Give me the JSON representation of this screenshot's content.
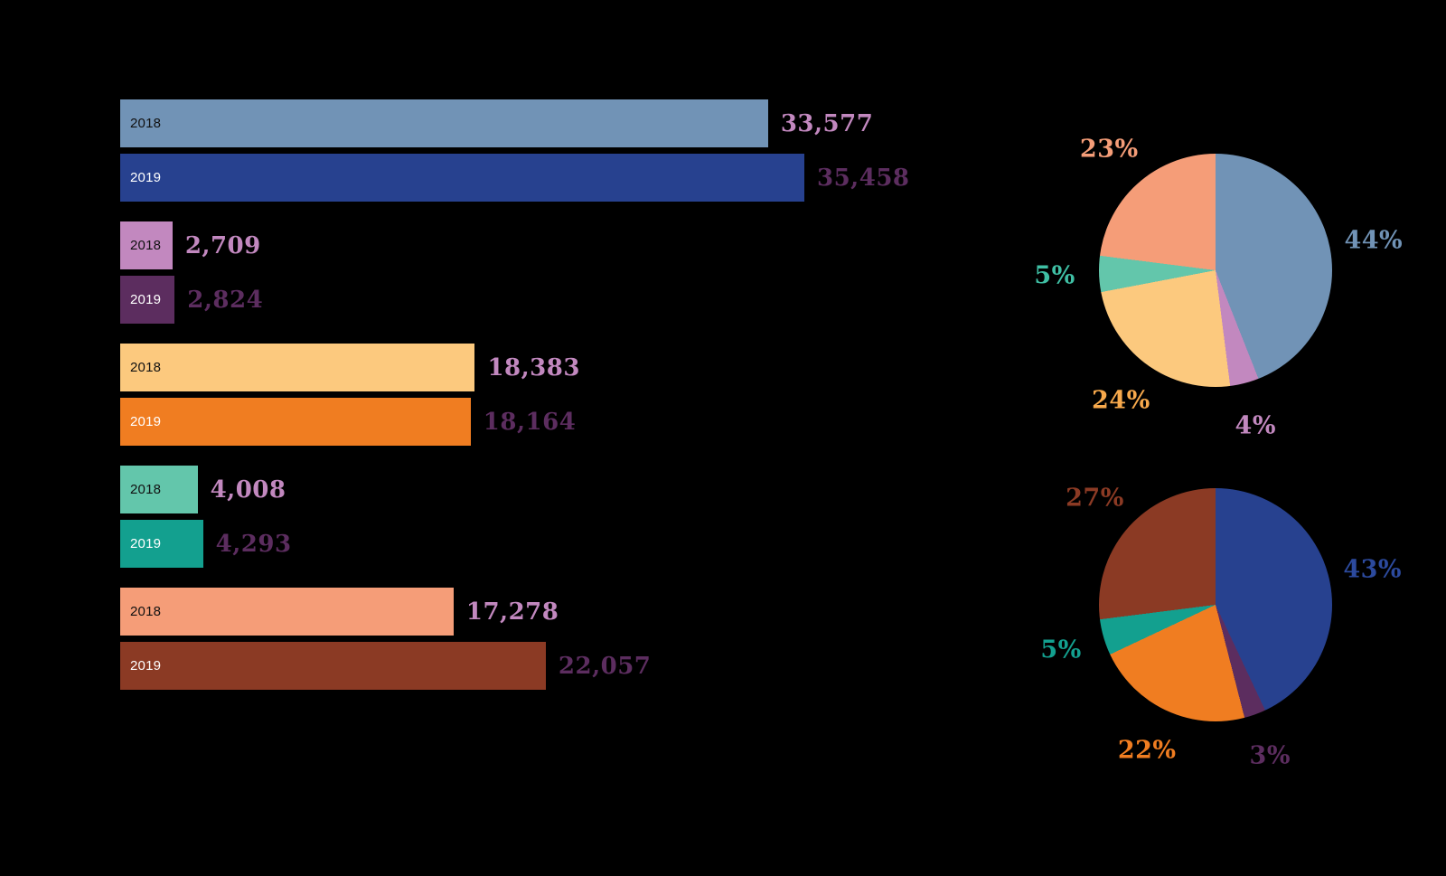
{
  "background_color": "#000000",
  "chart_data": [
    {
      "id": "grouped-bar-chart",
      "type": "bar",
      "orientation": "horizontal",
      "xmax": 40000,
      "series_years": [
        "2018",
        "2019"
      ],
      "value_label_colors": {
        "2018": "#c288bf",
        "2019": "#5c2d5f"
      },
      "groups": [
        {
          "bars": [
            {
              "year": "2018",
              "value": 33577,
              "value_label": "33,577",
              "bar_color": "#7193b6",
              "year_text_color": "#111111",
              "value_text_color": "#c288bf"
            },
            {
              "year": "2019",
              "value": 35458,
              "value_label": "35,458",
              "bar_color": "#27418f",
              "year_text_color": "#ffffff",
              "value_text_color": "#5c2d5f"
            }
          ]
        },
        {
          "bars": [
            {
              "year": "2018",
              "value": 2709,
              "value_label": "2,709",
              "bar_color": "#c288bf",
              "year_text_color": "#111111",
              "value_text_color": "#c288bf"
            },
            {
              "year": "2019",
              "value": 2824,
              "value_label": "2,824",
              "bar_color": "#5c2d5f",
              "year_text_color": "#ffffff",
              "value_text_color": "#5c2d5f"
            }
          ]
        },
        {
          "bars": [
            {
              "year": "2018",
              "value": 18383,
              "value_label": "18,383",
              "bar_color": "#fcc97e",
              "year_text_color": "#111111",
              "value_text_color": "#c288bf"
            },
            {
              "year": "2019",
              "value": 18164,
              "value_label": "18,164",
              "bar_color": "#f07d21",
              "year_text_color": "#ffffff",
              "value_text_color": "#5c2d5f"
            }
          ]
        },
        {
          "bars": [
            {
              "year": "2018",
              "value": 4008,
              "value_label": "4,008",
              "bar_color": "#63c6ab",
              "year_text_color": "#111111",
              "value_text_color": "#c288bf"
            },
            {
              "year": "2019",
              "value": 4293,
              "value_label": "4,293",
              "bar_color": "#13a08f",
              "year_text_color": "#ffffff",
              "value_text_color": "#5c2d5f"
            }
          ]
        },
        {
          "bars": [
            {
              "year": "2018",
              "value": 17278,
              "value_label": "17,278",
              "bar_color": "#f59d78",
              "year_text_color": "#111111",
              "value_text_color": "#c288bf"
            },
            {
              "year": "2019",
              "value": 22057,
              "value_label": "22,057",
              "bar_color": "#8b3a24",
              "year_text_color": "#ffffff",
              "value_text_color": "#5c2d5f"
            }
          ]
        }
      ]
    },
    {
      "id": "pie-chart-2018",
      "type": "pie",
      "slices": [
        {
          "label": "44%",
          "value": 44,
          "color": "#7193b6",
          "label_color": "#7193b6"
        },
        {
          "label": "4%",
          "value": 4,
          "color": "#c288bf",
          "label_color": "#c288bf"
        },
        {
          "label": "24%",
          "value": 24,
          "color": "#fcc97e",
          "label_color": "#f7a94c"
        },
        {
          "label": "5%",
          "value": 5,
          "color": "#63c6ab",
          "label_color": "#3fbfa4"
        },
        {
          "label": "23%",
          "value": 23,
          "color": "#f59d78",
          "label_color": "#f59d78"
        }
      ]
    },
    {
      "id": "pie-chart-2019",
      "type": "pie",
      "slices": [
        {
          "label": "43%",
          "value": 43,
          "color": "#27418f",
          "label_color": "#2c4a9e"
        },
        {
          "label": "3%",
          "value": 3,
          "color": "#5c2d5f",
          "label_color": "#5c2d5f"
        },
        {
          "label": "22%",
          "value": 22,
          "color": "#f07d21",
          "label_color": "#f07d21"
        },
        {
          "label": "5%",
          "value": 5,
          "color": "#13a08f",
          "label_color": "#13a08f"
        },
        {
          "label": "27%",
          "value": 27,
          "color": "#8b3a24",
          "label_color": "#8b3a24"
        }
      ]
    }
  ]
}
